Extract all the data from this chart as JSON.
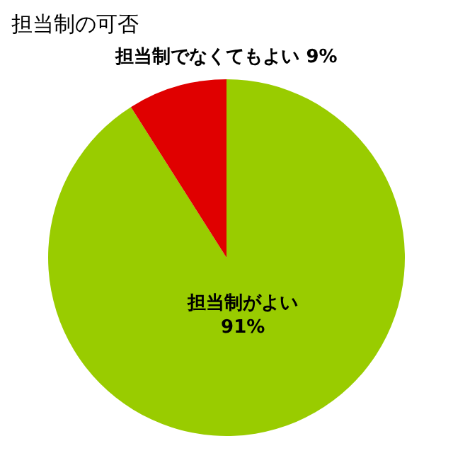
{
  "chart_data": {
    "type": "pie",
    "title": "担当制の可否",
    "categories": [
      "担当制がよい",
      "担当制でなくてもよい"
    ],
    "values": [
      91,
      9
    ],
    "colors": [
      "#99cc00",
      "#e00000"
    ],
    "value_labels": [
      "91%",
      "9%"
    ]
  }
}
